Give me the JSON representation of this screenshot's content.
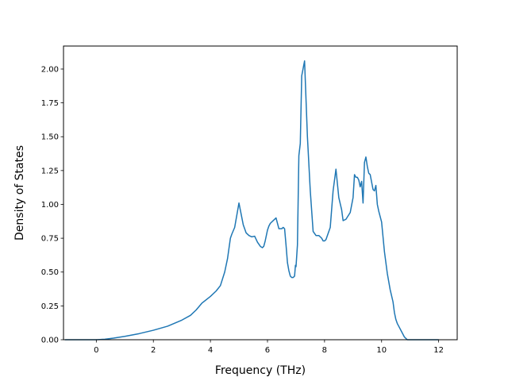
{
  "chart_data": {
    "type": "line",
    "title": "",
    "xlabel": "Frequency (THz)",
    "ylabel": "Density of States",
    "xlim": [
      -1.15,
      12.65
    ],
    "ylim": [
      0,
      2.17
    ],
    "x_ticks": [
      0,
      2,
      4,
      6,
      8,
      10,
      12
    ],
    "x_tick_labels": [
      "0",
      "2",
      "4",
      "6",
      "8",
      "10",
      "12"
    ],
    "y_ticks": [
      0.0,
      0.25,
      0.5,
      0.75,
      1.0,
      1.25,
      1.5,
      1.75,
      2.0
    ],
    "y_tick_labels": [
      "0.00",
      "0.25",
      "0.50",
      "0.75",
      "1.00",
      "1.25",
      "1.50",
      "1.75",
      "2.00"
    ],
    "grid": false,
    "legend": "none",
    "series": [
      {
        "color": "#1f77b4",
        "x": [
          -1.1,
          -0.5,
          0.0,
          0.3,
          0.6,
          1.0,
          1.5,
          2.0,
          2.5,
          3.0,
          3.3,
          3.5,
          3.7,
          4.0,
          4.2,
          4.35,
          4.5,
          4.6,
          4.7,
          4.75,
          4.85,
          5.0,
          5.15,
          5.25,
          5.35,
          5.45,
          5.55,
          5.65,
          5.75,
          5.82,
          5.87,
          5.92,
          6.0,
          6.05,
          6.1,
          6.2,
          6.3,
          6.4,
          6.5,
          6.55,
          6.6,
          6.65,
          6.7,
          6.75,
          6.8,
          6.85,
          6.9,
          6.95,
          6.98,
          7.0,
          7.05,
          7.1,
          7.15,
          7.2,
          7.3,
          7.4,
          7.5,
          7.6,
          7.7,
          7.8,
          7.9,
          7.95,
          8.0,
          8.05,
          8.1,
          8.2,
          8.3,
          8.4,
          8.5,
          8.6,
          8.65,
          8.75,
          8.9,
          9.0,
          9.05,
          9.1,
          9.15,
          9.2,
          9.25,
          9.3,
          9.35,
          9.4,
          9.45,
          9.5,
          9.55,
          9.6,
          9.7,
          9.75,
          9.8,
          9.85,
          9.9,
          10.0,
          10.1,
          10.2,
          10.3,
          10.4,
          10.45,
          10.5,
          10.55,
          10.6,
          10.7,
          10.8,
          10.9,
          11.0,
          11.5,
          12.0
        ],
        "y": [
          0.0,
          0.0,
          0.0,
          0.004,
          0.012,
          0.025,
          0.045,
          0.07,
          0.1,
          0.145,
          0.18,
          0.22,
          0.27,
          0.32,
          0.36,
          0.4,
          0.5,
          0.6,
          0.75,
          0.78,
          0.83,
          1.01,
          0.85,
          0.79,
          0.77,
          0.76,
          0.765,
          0.72,
          0.69,
          0.68,
          0.69,
          0.73,
          0.81,
          0.84,
          0.86,
          0.88,
          0.9,
          0.82,
          0.82,
          0.83,
          0.82,
          0.7,
          0.57,
          0.51,
          0.47,
          0.46,
          0.46,
          0.47,
          0.55,
          0.54,
          0.7,
          1.36,
          1.45,
          1.95,
          2.06,
          1.5,
          1.1,
          0.8,
          0.77,
          0.77,
          0.75,
          0.73,
          0.73,
          0.74,
          0.77,
          0.83,
          1.1,
          1.26,
          1.05,
          0.96,
          0.88,
          0.89,
          0.94,
          1.05,
          1.22,
          1.2,
          1.2,
          1.18,
          1.13,
          1.17,
          1.01,
          1.31,
          1.35,
          1.28,
          1.23,
          1.22,
          1.11,
          1.1,
          1.14,
          1.0,
          0.95,
          0.87,
          0.65,
          0.49,
          0.37,
          0.28,
          0.2,
          0.15,
          0.12,
          0.1,
          0.06,
          0.02,
          0.0,
          0.0,
          0.0,
          0.0
        ]
      }
    ]
  }
}
